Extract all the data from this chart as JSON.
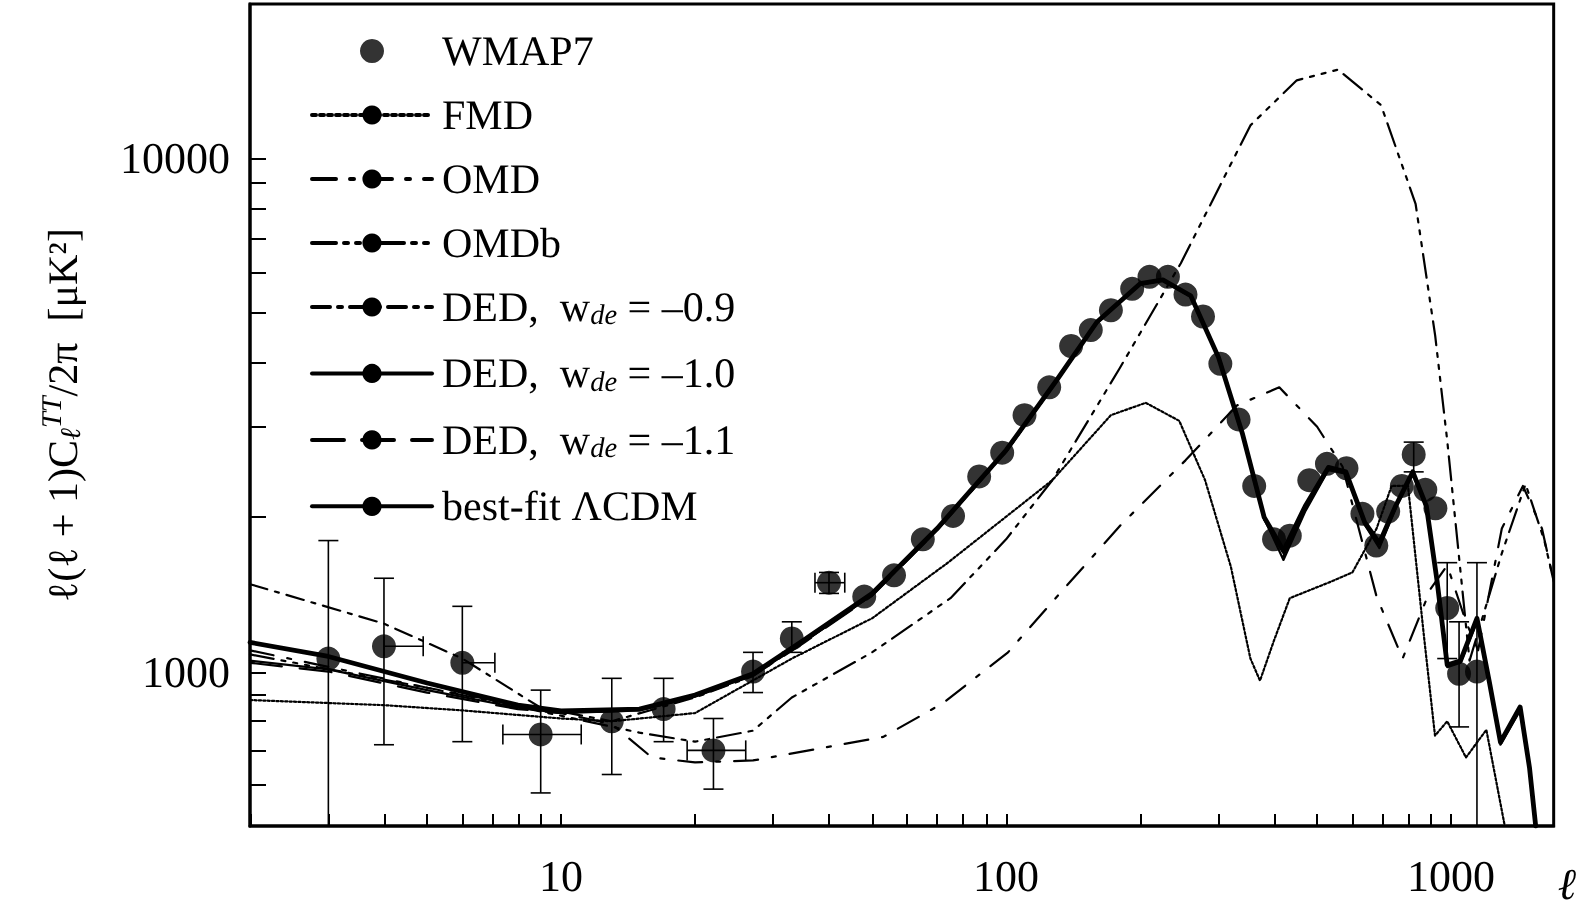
{
  "chart_data": {
    "type": "line",
    "xlabel": "ℓ",
    "ylabel": "ℓ(ℓ + 1)C$_{ℓ}$$^{TT}$/2π  [μK²]",
    "log": "xy",
    "xlim": [
      2,
      1700
    ],
    "xticks": [
      {
        "value": 2,
        "label": null
      },
      {
        "value": 3,
        "label": null
      },
      {
        "value": 4,
        "label": null
      },
      {
        "value": 5,
        "label": null
      },
      {
        "value": 6,
        "label": null
      },
      {
        "value": 7,
        "label": null
      },
      {
        "value": 8,
        "label": null
      },
      {
        "value": 9,
        "label": null
      },
      10,
      {
        "value": 20,
        "label": null
      },
      {
        "value": 30,
        "label": null
      },
      {
        "value": 40,
        "label": null
      },
      {
        "value": 50,
        "label": null
      },
      {
        "value": 60,
        "label": null
      },
      {
        "value": 70,
        "label": null
      },
      {
        "value": 80,
        "label": null
      },
      {
        "value": 90,
        "label": null
      },
      100,
      {
        "value": 200,
        "label": null
      },
      {
        "value": 300,
        "label": null
      },
      {
        "value": 400,
        "label": null
      },
      {
        "value": 500,
        "label": null
      },
      {
        "value": 600,
        "label": null
      },
      {
        "value": 700,
        "label": null
      },
      {
        "value": 800,
        "label": null
      },
      {
        "value": 900,
        "label": null
      },
      1000
    ],
    "ylim": [
      500,
      20000
    ],
    "yticks": [
      {
        "value": 600,
        "label": null
      },
      {
        "value": 700,
        "label": null
      },
      {
        "value": 800,
        "label": null
      },
      {
        "value": 900,
        "label": null
      },
      1000,
      {
        "value": 2000,
        "label": null
      },
      {
        "value": 3000,
        "label": null
      },
      {
        "value": 4000,
        "label": null
      },
      {
        "value": 5000,
        "label": null
      },
      {
        "value": 6000,
        "label": null
      },
      {
        "value": 7000,
        "label": null
      },
      {
        "value": 8000,
        "label": null
      },
      {
        "value": 9000,
        "label": null
      },
      10000
    ],
    "grid": false,
    "legend": "top left",
    "series": [
      {
        "name": "WMAP7",
        "type": "scatter",
        "marker": "circle",
        "color": "#000000",
        "x": [
          3,
          4,
          6,
          9,
          13,
          17,
          22,
          27,
          33,
          40,
          48,
          56,
          65,
          76,
          87,
          98,
          110,
          125,
          140,
          155,
          172,
          192,
          210,
          231,
          253,
          277,
          303,
          333,
          361,
          400,
          434,
          480,
          526,
          582,
          632,
          679,
          722,
          775,
          824,
          875,
          922,
          980,
          1042,
          1143
        ],
        "values": [
          1060,
          1120,
          1040,
          754,
          800,
          845,
          702,
          1000,
          1160,
          1490,
          1400,
          1540,
          1810,
          2010,
          2400,
          2670,
          3160,
          3580,
          4310,
          4630,
          5060,
          5570,
          5880,
          5880,
          5430,
          4920,
          3980,
          3100,
          2300,
          1810,
          1840,
          2360,
          2540,
          2490,
          2030,
          1760,
          2050,
          2300,
          2650,
          2260,
          2080,
          1330,
          990,
          1000
        ],
        "errors": [
          [
            500,
            1800
          ],
          [
            720,
            1520
          ],
          [
            730,
            1340
          ],
          [
            580,
            920
          ],
          [
            630,
            970
          ],
          [
            730,
            970
          ],
          [
            590,
            810
          ],
          [
            910,
            1090
          ],
          [
            1090,
            1250
          ],
          [
            1420,
            1560
          ],
          null,
          null,
          null,
          null,
          null,
          null,
          null,
          null,
          null,
          null,
          null,
          null,
          null,
          null,
          null,
          null,
          null,
          null,
          null,
          null,
          null,
          null,
          null,
          null,
          null,
          null,
          null,
          null,
          [
            2450,
            2800
          ],
          null,
          null,
          [
            1060,
            1630
          ],
          [
            780,
            1250
          ],
          [
            500,
            1630
          ]
        ],
        "xerrors": [
          null,
          [
            4,
            4.9
          ],
          [
            6,
            7.1
          ],
          [
            7.4,
            11.1
          ],
          null,
          null,
          [
            19.2,
            26
          ],
          null,
          null,
          [
            37.2,
            43.4
          ],
          null,
          null,
          null,
          null,
          null,
          null,
          null,
          null,
          null,
          null,
          null,
          null,
          null,
          null,
          null,
          null,
          null,
          null,
          null,
          null,
          null,
          null,
          null,
          null,
          null,
          null,
          null,
          null,
          null,
          null,
          null,
          null,
          null,
          null
        ]
      },
      {
        "name": "FMD",
        "line_style": "dotted",
        "color": "#000000",
        "x": [
          2,
          4,
          6,
          10,
          13,
          20,
          33,
          50,
          74,
          127,
          172,
          206,
          245,
          280,
          320,
          354,
          372,
          400,
          434,
          530,
          600,
          680,
          735,
          800,
          870,
          920,
          980,
          1080,
          1200,
          1320
        ],
        "values": [
          880,
          860,
          840,
          810,
          800,
          830,
          1060,
          1270,
          1630,
          2360,
          3160,
          3340,
          3080,
          2360,
          1600,
          1060,
          960,
          1150,
          1390,
          1490,
          1560,
          1900,
          2300,
          2300,
          1160,
          750,
          800,
          680,
          770,
          500
        ]
      },
      {
        "name": "OMD",
        "line_style": "dashed",
        "color": "#000000",
        "x": [
          2,
          5,
          10,
          13,
          16,
          20,
          27,
          53,
          72,
          101,
          133,
          181,
          253,
          330,
          411,
          500,
          570,
          680,
          778,
          900,
          980,
          1080,
          1150,
          1300,
          1450,
          1600,
          1700
        ],
        "values": [
          1100,
          930,
          830,
          790,
          680,
          665,
          671,
          746,
          867,
          1090,
          1430,
          1930,
          2580,
          3300,
          3580,
          3000,
          2510,
          1400,
          1060,
          1450,
          1610,
          1250,
          1100,
          1900,
          2300,
          1900,
          1500
        ]
      },
      {
        "name": "OMDb",
        "line_style": "dashed",
        "color": "#000000",
        "x": [
          2,
          5,
          10,
          15,
          20,
          27,
          33,
          50,
          75,
          100,
          127,
          180,
          247,
          354,
          450,
          557,
          696,
          832,
          921,
          980,
          1100,
          1300,
          1470,
          1620,
          1700
        ],
        "values": [
          1080,
          930,
          820,
          760,
          730,
          767,
          890,
          1090,
          1390,
          1810,
          2360,
          3900,
          6250,
          11600,
          14200,
          14900,
          12700,
          8160,
          4510,
          2820,
          1050,
          1700,
          2320,
          1800,
          1500
        ]
      },
      {
        "name": "DED,  w$_{de}$ = –0.9",
        "line_style": "dashed",
        "color": "#000000",
        "x": [
          2,
          4,
          6,
          9,
          13,
          20,
          27,
          35,
          50,
          70,
          100,
          130,
          160,
          200,
          225,
          260,
          300,
          340,
          380,
          420,
          470,
          530,
          580,
          640,
          690,
          750,
          820,
          880,
          930,
          980,
          1050,
          1143,
          1220,
          1291,
          1429,
          1500,
          1549
        ],
        "values": [
          1480,
          1240,
          1060,
          850,
          800,
          890,
          980,
          1140,
          1410,
          1890,
          2680,
          3680,
          4780,
          5680,
          5780,
          5380,
          4080,
          2880,
          1980,
          1700,
          2080,
          2480,
          2440,
          1940,
          1770,
          2090,
          2440,
          2090,
          1490,
          1030,
          1050,
          1260,
          950,
          730,
          850,
          650,
          500
        ]
      },
      {
        "name": "DED,  w$_{de}$ = –1.0",
        "line_style": "solid",
        "color": "#000000",
        "x": [
          2,
          3,
          5,
          8,
          10,
          15,
          20,
          27,
          35,
          50,
          70,
          100,
          130,
          160,
          200,
          225,
          260,
          300,
          340,
          380,
          420,
          470,
          530,
          580,
          640,
          690,
          750,
          820,
          880,
          930,
          980,
          1050,
          1143,
          1220,
          1291,
          1429,
          1500,
          1549
        ],
        "values": [
          1050,
          1010,
          920,
          850,
          830,
          840,
          895,
          985,
          1140,
          1410,
          1890,
          2690,
          3690,
          4790,
          5690,
          5790,
          5390,
          4090,
          2890,
          1990,
          1650,
          2050,
          2470,
          2430,
          1930,
          1740,
          2080,
          2430,
          2080,
          1480,
          1020,
          1040,
          1250,
          940,
          720,
          840,
          640,
          500
        ]
      },
      {
        "name": "DED,  w$_{de}$ = –1.1",
        "line_style": "dashed",
        "color": "#000000",
        "x": [
          2,
          3,
          5,
          8,
          10,
          15,
          20,
          27,
          35,
          50,
          70,
          100,
          130,
          160,
          200,
          225,
          260,
          300,
          340,
          380,
          420,
          470,
          530,
          580,
          640,
          690,
          750,
          820,
          880,
          930,
          980,
          1050,
          1143,
          1220,
          1291,
          1429,
          1500,
          1549
        ],
        "values": [
          1040,
          1000,
          910,
          845,
          830,
          840,
          893,
          982,
          1135,
          1405,
          1885,
          2680,
          3680,
          4780,
          5680,
          5780,
          5380,
          4080,
          2880,
          1980,
          1680,
          2070,
          2480,
          2440,
          1940,
          1760,
          2090,
          2440,
          2090,
          1490,
          1030,
          1050,
          1260,
          950,
          730,
          850,
          650,
          500
        ]
      },
      {
        "name": "best-fit ΛCDM",
        "line_style": "solid",
        "color": "#000000",
        "x": [
          2,
          3,
          5,
          8,
          10,
          15,
          20,
          27,
          35,
          50,
          70,
          100,
          130,
          160,
          200,
          225,
          260,
          300,
          340,
          380,
          420,
          470,
          530,
          580,
          640,
          690,
          750,
          820,
          880,
          930,
          980,
          1050,
          1143,
          1220,
          1291,
          1429,
          1500,
          1549
        ],
        "values": [
          1140,
          1070,
          950,
          860,
          838,
          845,
          900,
          990,
          1150,
          1420,
          1900,
          2700,
          3700,
          4800,
          5700,
          5800,
          5400,
          4100,
          2900,
          2000,
          1720,
          2100,
          2500,
          2450,
          1950,
          1780,
          2100,
          2450,
          2100,
          1500,
          1030,
          1050,
          1270,
          950,
          728,
          853,
          650,
          500
        ]
      }
    ]
  }
}
